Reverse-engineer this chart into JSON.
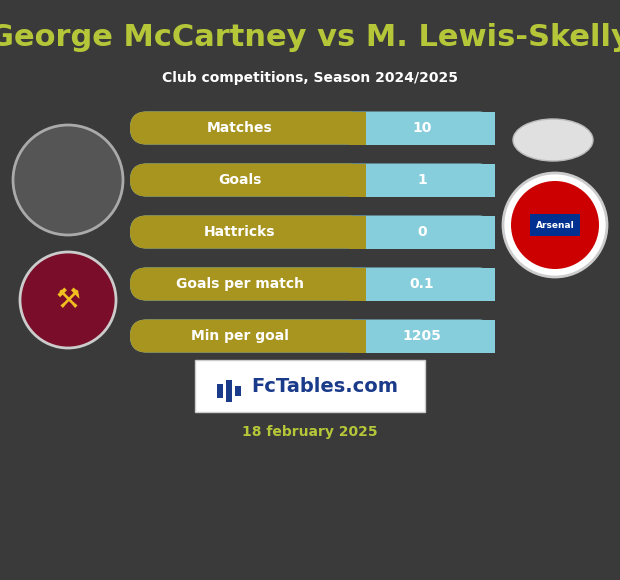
{
  "title": "George McCartney vs M. Lewis-Skelly",
  "subtitle": "Club competitions, Season 2024/2025",
  "date_text": "18 february 2025",
  "background_color": "#3a3a3a",
  "title_color": "#b5c738",
  "subtitle_color": "#ffffff",
  "date_color": "#b5c738",
  "stats": [
    {
      "label": "Matches",
      "value": "10"
    },
    {
      "label": "Goals",
      "value": "1"
    },
    {
      "label": "Hattricks",
      "value": "0"
    },
    {
      "label": "Goals per match",
      "value": "0.1"
    },
    {
      "label": "Min per goal",
      "value": "1205"
    }
  ],
  "bar_left_color": "#a89520",
  "bar_right_color": "#87cedc",
  "bar_label_color": "#ffffff",
  "bar_value_color": "#ffffff",
  "watermark_bg": "#ffffff",
  "watermark_text_color": "#1a3a8a",
  "watermark_icon_color": "#1a3a8a"
}
